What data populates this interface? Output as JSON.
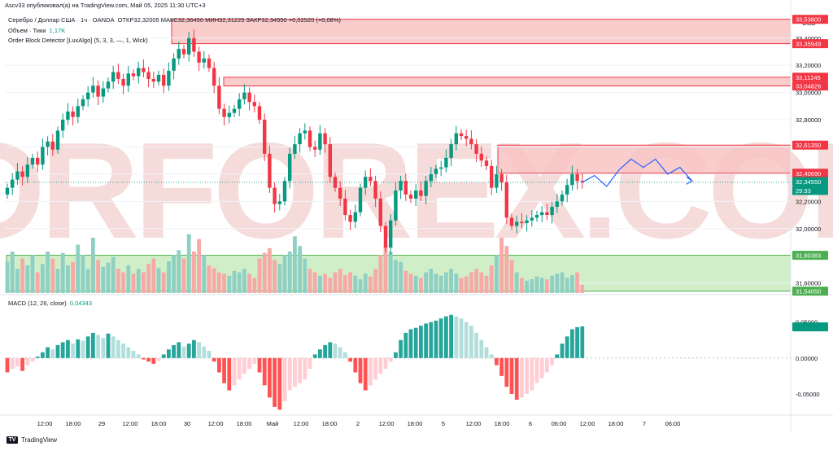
{
  "caption": "Ascv33 опубликовал(а) на TradingView.com, Май 05, 2025 11:30 UTC+3",
  "legend": {
    "symbol": "Серебро / Доллар США · 1ч · OANDA",
    "ohlc": "ОТКР32,32005  МАКС32,36450  МИН32,31225  ЗАКР32,34550  +0,02520 (+0,08%)",
    "volume_label": "Объем · Тики",
    "volume_value": "1,17K",
    "indicator": "Order Block Detector [LuxAlgo] (5, 3, 3, —, 1, Wick)"
  },
  "macd_legend": {
    "label": "MACD (12, 26, close)",
    "value": "0,04343"
  },
  "currency": "USD",
  "watermark": "TORFOREX.COM",
  "footer": {
    "brand": "TradingView",
    "logo": "TV"
  },
  "colors": {
    "up": "#089981",
    "down": "#f23645",
    "vol_up": "#8fd0c4",
    "vol_down": "#f7a9a7",
    "bear_zone": "#f7c4c3",
    "bull_zone": "#c8ecc0",
    "projection": "#2962ff"
  },
  "chart_data": {
    "type": "candlestick",
    "title": "Серебро / Доллар США · 1ч · OANDA",
    "ylim": [
      31.55,
      33.62
    ],
    "price_ticks": [
      "33,40000",
      "33,20000",
      "33,00000",
      "32,80000",
      "32,60000",
      "32,40000",
      "32,20000",
      "32,00000",
      "31,60000"
    ],
    "price_tick_values": [
      33.4,
      33.2,
      33.0,
      32.8,
      32.6,
      32.4,
      32.2,
      32.0,
      31.6
    ],
    "price_labels": [
      {
        "text": "33,53800",
        "value": 33.538,
        "color": "#f23645"
      },
      {
        "text": "33,35949",
        "value": 33.359,
        "color": "#f23645"
      },
      {
        "text": "33,11245",
        "value": 33.112,
        "color": "#f23645"
      },
      {
        "text": "33,04826",
        "value": 33.048,
        "color": "#f23645"
      },
      {
        "text": "32,61350",
        "value": 32.6135,
        "color": "#f23645"
      },
      {
        "text": "32,40690",
        "value": 32.4069,
        "color": "#f23645"
      },
      {
        "text": "32,34550",
        "value": 32.3455,
        "color": "#089981"
      },
      {
        "text": "29:33",
        "value": 32.28,
        "color": "#089981"
      },
      {
        "text": "31,80383",
        "value": 31.8038,
        "color": "#4caf50"
      },
      {
        "text": "31,54050",
        "value": 31.5405,
        "color": "#4caf50"
      }
    ],
    "x_ticks": [
      "12:00",
      "18:00",
      "29",
      "12:00",
      "18:00",
      "30",
      "12:00",
      "18:00",
      "Май",
      "12:00",
      "18:00",
      "2",
      "12:00",
      "18:00",
      "5",
      "12:00",
      "18:00",
      "6",
      "06:00",
      "12:00",
      "18:00",
      "7",
      "06:00"
    ],
    "order_blocks": [
      {
        "kind": "bearish",
        "top": 33.538,
        "bottom": 33.359
      },
      {
        "kind": "bearish",
        "top": 33.112,
        "bottom": 33.048
      },
      {
        "kind": "bearish",
        "top": 32.6135,
        "bottom": 32.4069
      },
      {
        "kind": "bullish",
        "top": 31.8038,
        "bottom": 31.5405
      }
    ],
    "closes": [
      32.3,
      32.36,
      32.42,
      32.38,
      32.47,
      32.52,
      32.47,
      32.6,
      32.64,
      32.58,
      32.72,
      32.8,
      32.86,
      32.82,
      32.9,
      32.95,
      33.0,
      33.05,
      32.97,
      33.03,
      33.08,
      33.15,
      33.1,
      33.05,
      33.14,
      33.12,
      33.18,
      33.15,
      33.1,
      33.08,
      33.13,
      33.05,
      33.16,
      33.25,
      33.32,
      33.28,
      33.4,
      33.3,
      33.22,
      33.25,
      33.18,
      33.05,
      32.88,
      32.82,
      32.85,
      32.88,
      32.95,
      33.0,
      32.93,
      32.9,
      32.8,
      32.55,
      32.3,
      32.18,
      32.2,
      32.35,
      32.55,
      32.62,
      32.7,
      32.72,
      32.6,
      32.58,
      32.7,
      32.62,
      32.38,
      32.3,
      32.22,
      32.1,
      32.05,
      32.12,
      32.3,
      32.38,
      32.35,
      32.22,
      32.02,
      31.86,
      32.06,
      32.28,
      32.35,
      32.25,
      32.22,
      32.28,
      32.24,
      32.35,
      32.4,
      32.44,
      32.45,
      32.52,
      32.62,
      32.7,
      32.68,
      32.66,
      32.62,
      32.55,
      32.5,
      32.46,
      32.3,
      32.4,
      32.34,
      32.08,
      32.02,
      32.05,
      32.04,
      32.06,
      32.08,
      32.1,
      32.12,
      32.1,
      32.16,
      32.2,
      32.25,
      32.32,
      32.4,
      32.35,
      32.34
    ],
    "projection": [
      32.34,
      32.39,
      32.31,
      32.43,
      32.51,
      32.45,
      32.51,
      32.4,
      32.45,
      32.35
    ],
    "volumes": [
      0.45,
      0.6,
      0.35,
      0.5,
      0.4,
      0.55,
      0.3,
      0.42,
      0.6,
      0.5,
      0.35,
      0.58,
      0.4,
      0.45,
      0.7,
      0.55,
      0.35,
      0.8,
      0.48,
      0.38,
      0.44,
      0.52,
      0.35,
      0.3,
      0.4,
      0.28,
      0.35,
      0.3,
      0.42,
      0.5,
      0.36,
      0.3,
      0.46,
      0.55,
      0.62,
      0.5,
      0.85,
      0.6,
      0.78,
      0.55,
      0.4,
      0.36,
      0.3,
      0.28,
      0.25,
      0.32,
      0.3,
      0.35,
      0.28,
      0.22,
      0.5,
      0.58,
      0.65,
      0.48,
      0.42,
      0.55,
      0.6,
      0.82,
      0.68,
      0.5,
      0.35,
      0.3,
      0.25,
      0.28,
      0.22,
      0.3,
      0.35,
      0.26,
      0.3,
      0.25,
      0.2,
      0.28,
      0.24,
      0.35,
      0.55,
      0.7,
      0.6,
      0.48,
      0.45,
      0.32,
      0.28,
      0.25,
      0.22,
      0.3,
      0.35,
      0.28,
      0.25,
      0.3,
      0.35,
      0.28,
      0.22,
      0.24,
      0.3,
      0.35,
      0.3,
      0.25,
      0.4,
      0.55,
      0.8,
      0.68,
      0.48,
      0.3,
      0.22,
      0.18,
      0.2,
      0.24,
      0.22,
      0.2,
      0.25,
      0.28,
      0.3,
      0.22,
      0.26,
      0.3,
      0.12
    ],
    "macd": {
      "ylim": [
        -0.075,
        0.07
      ],
      "ticks": [
        "0,05000",
        "0,00000",
        "-0,05000"
      ],
      "tick_values": [
        0.05,
        0.0,
        -0.05
      ],
      "value": 0.04343,
      "histogram": [
        -0.02,
        -0.015,
        -0.012,
        -0.018,
        -0.01,
        -0.005,
        0.002,
        0.008,
        0.015,
        0.012,
        0.018,
        0.022,
        0.025,
        0.02,
        0.026,
        0.024,
        0.03,
        0.035,
        0.032,
        0.028,
        0.034,
        0.03,
        0.025,
        0.02,
        0.015,
        0.01,
        0.005,
        -0.002,
        -0.005,
        -0.008,
        -0.004,
        0.005,
        0.012,
        0.018,
        0.022,
        0.016,
        0.02,
        0.025,
        0.022,
        0.016,
        0.01,
        -0.005,
        -0.02,
        -0.035,
        -0.045,
        -0.038,
        -0.03,
        -0.022,
        -0.015,
        -0.008,
        -0.02,
        -0.038,
        -0.055,
        -0.068,
        -0.072,
        -0.06,
        -0.045,
        -0.04,
        -0.035,
        -0.03,
        -0.015,
        0.005,
        0.012,
        0.018,
        0.022,
        0.02,
        0.015,
        0.008,
        -0.005,
        -0.02,
        -0.035,
        -0.045,
        -0.038,
        -0.03,
        -0.022,
        -0.015,
        -0.005,
        0.008,
        0.025,
        0.035,
        0.04,
        0.042,
        0.045,
        0.048,
        0.05,
        0.052,
        0.055,
        0.058,
        0.06,
        0.058,
        0.055,
        0.05,
        0.045,
        0.035,
        0.025,
        0.015,
        0.005,
        -0.01,
        -0.025,
        -0.04,
        -0.05,
        -0.058,
        -0.055,
        -0.05,
        -0.045,
        -0.035,
        -0.028,
        -0.02,
        -0.01,
        0.005,
        0.02,
        0.03,
        0.04,
        0.043,
        0.044
      ]
    }
  }
}
